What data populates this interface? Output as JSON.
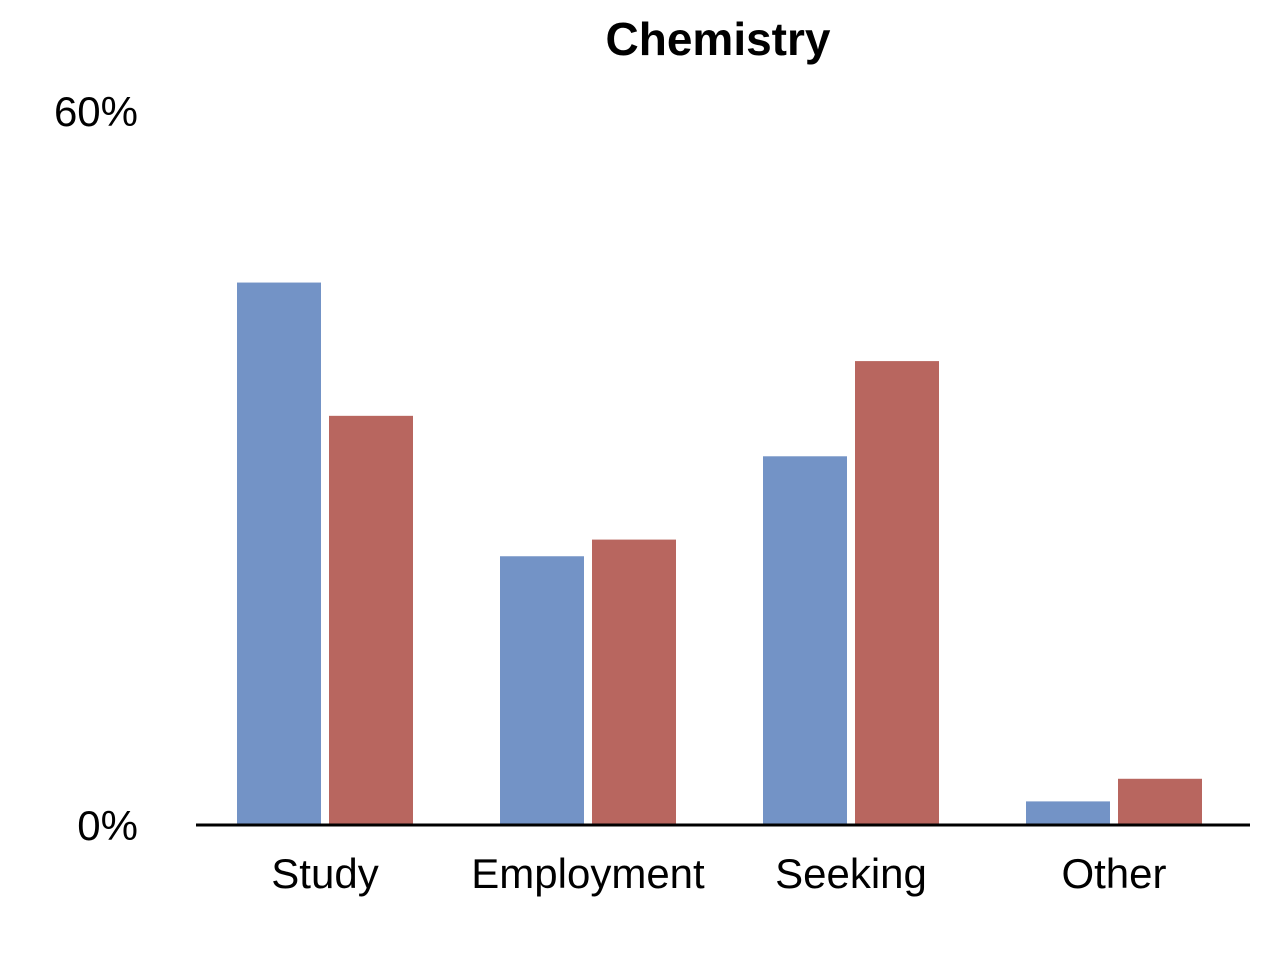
{
  "chart_data": {
    "type": "bar",
    "title": "Chemistry",
    "categories": [
      "Study",
      "Employment",
      "Seeking",
      "Other"
    ],
    "series": [
      {
        "values": [
          45.5,
          22.5,
          30.9,
          1.9
        ]
      },
      {
        "values": [
          34.3,
          23.9,
          38.9,
          3.8
        ]
      }
    ],
    "ylim": [
      0,
      60
    ],
    "yticks": [
      "0%",
      "60%"
    ],
    "xlabel": "",
    "ylabel": "",
    "grid": false,
    "colors": [
      "#7393c6",
      "#b8665f"
    ]
  }
}
